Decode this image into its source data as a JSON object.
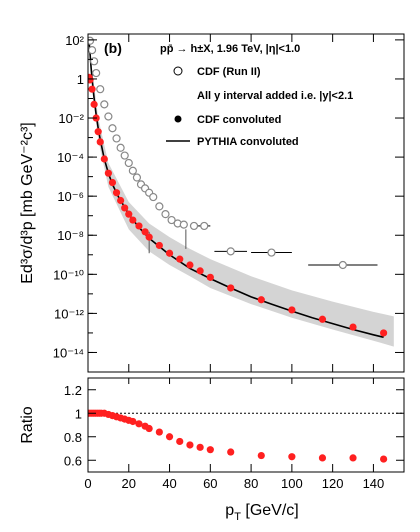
{
  "figure": {
    "panel_label": "(b)",
    "header": "pp̄ → h±X, 1.96 TeV, |η|<1.0",
    "legend": [
      {
        "marker": "open-circle",
        "label": "CDF (Run II)"
      },
      {
        "marker": "none",
        "label": "All y interval added i.e. |y|<2.1"
      },
      {
        "marker": "filled-circle",
        "label": "CDF convoluted"
      },
      {
        "marker": "line",
        "label": "PYTHIA convoluted"
      }
    ],
    "y_title_top": "Ed³σ/d³p [mb GeV⁻²c³]",
    "y_title_bottom": "Ratio",
    "x_title": "p_T [GeV/c]"
  },
  "chart_data": [
    {
      "type": "scatter",
      "scale": "log",
      "xlim": [
        0,
        155
      ],
      "ylim": [
        1e-15,
        200
      ],
      "x_ticks": [
        0,
        20,
        40,
        60,
        80,
        100,
        120,
        140
      ],
      "y_ticks": [
        {
          "value": 100,
          "label": "10²"
        },
        {
          "value": 1,
          "label": "1"
        },
        {
          "value": 0.01,
          "label": "10⁻²"
        },
        {
          "value": 0.0001,
          "label": "10⁻⁴"
        },
        {
          "value": 1e-06,
          "label": "10⁻⁶"
        },
        {
          "value": 1e-08,
          "label": "10⁻⁸"
        },
        {
          "value": 1e-10,
          "label": "10⁻¹⁰"
        },
        {
          "value": 1e-12,
          "label": "10⁻¹²"
        },
        {
          "value": 1e-14,
          "label": "10⁻¹⁴"
        }
      ],
      "colors": {
        "cdf_convoluted": "#ff2020",
        "band": "#d4d4d4",
        "cdf_run2": "#888888"
      },
      "series": [
        {
          "name": "CDF (Run II)",
          "marker": "open-circle",
          "x": [
            1,
            2,
            3,
            4,
            6,
            8,
            10,
            12,
            14,
            16,
            18,
            20,
            22,
            24,
            26,
            28,
            30,
            32,
            35,
            38,
            41,
            44,
            47,
            52,
            57,
            70,
            90,
            125
          ],
          "y": [
            90,
            30,
            8,
            2,
            0.3,
            0.05,
            0.012,
            0.003,
            0.0009,
            0.0003,
            0.00012,
            5e-05,
            2e-05,
            9e-06,
            4e-06,
            2.5e-06,
            1.5e-06,
            9e-07,
            3e-07,
            1.2e-07,
            6e-08,
            4e-08,
            3.5e-08,
            3e-08,
            3e-08,
            1.5e-09,
            1.3e-09,
            3e-10
          ],
          "xerr": [
            0,
            0,
            0,
            0,
            0,
            0,
            0,
            0,
            0,
            0,
            0,
            0,
            0,
            0,
            0,
            0,
            0,
            0,
            0,
            0,
            0,
            0,
            0,
            2,
            3,
            8,
            10,
            17
          ]
        },
        {
          "name": "CDF convoluted",
          "marker": "filled-circle",
          "x": [
            0.5,
            1,
            2,
            3,
            4,
            5,
            6,
            8,
            10,
            12,
            14,
            16,
            18,
            20,
            22,
            25,
            28,
            30,
            35,
            40,
            45,
            50,
            55,
            60,
            70,
            85,
            100,
            115,
            130,
            145
          ],
          "y": [
            1.2,
            0.9,
            0.3,
            0.05,
            0.01,
            0.002,
            0.0006,
            8e-05,
            1.5e-05,
            5e-06,
            1.5e-06,
            6e-07,
            2.5e-07,
            1.2e-07,
            6e-08,
            3e-08,
            1.5e-08,
            8e-09,
            3e-09,
            1.2e-09,
            6e-10,
            3e-10,
            1.5e-10,
            7e-11,
            2e-11,
            5e-12,
            1.5e-12,
            5e-13,
            2e-13,
            1e-13
          ]
        },
        {
          "name": "PYTHIA convoluted",
          "marker": "line",
          "x": [
            0.5,
            1,
            1.5,
            2,
            3,
            4,
            5,
            6,
            8,
            10,
            12,
            15,
            20,
            25,
            30,
            40,
            50,
            60,
            70,
            80,
            90,
            100,
            110,
            120,
            130,
            140,
            145
          ],
          "y": [
            100,
            20,
            4,
            1,
            0.1,
            0.015,
            0.003,
            0.0008,
            8e-05,
            1.5e-05,
            4e-06,
            9e-07,
            1.2e-07,
            2.5e-08,
            7e-09,
            1e-09,
            2e-10,
            6e-11,
            2e-11,
            7e-12,
            3e-12,
            1.3e-12,
            6e-13,
            3e-13,
            1.5e-13,
            8e-14,
            6e-14
          ]
        }
      ],
      "band": {
        "x": [
          0.5,
          2,
          5,
          10,
          20,
          30,
          40,
          50,
          60,
          80,
          100,
          120,
          140,
          150
        ],
        "upper": [
          150,
          3,
          0.01,
          5e-05,
          5e-07,
          4e-08,
          8e-09,
          2e-09,
          6e-10,
          8e-11,
          1.5e-11,
          4e-12,
          1.2e-12,
          7e-13
        ],
        "lower": [
          40,
          0.3,
          0.0008,
          3e-06,
          2e-08,
          1.5e-09,
          3e-10,
          8e-11,
          2e-11,
          3e-12,
          6e-13,
          1.5e-13,
          4e-14,
          2e-14
        ]
      }
    },
    {
      "type": "scatter",
      "xlim": [
        0,
        155
      ],
      "ylim": [
        0.5,
        1.3
      ],
      "x_ticks": [
        0,
        20,
        40,
        60,
        80,
        100,
        120,
        140
      ],
      "y_ticks": [
        0.6,
        0.8,
        1,
        1.2
      ],
      "reference_line": 1.0,
      "series": [
        {
          "name": "Ratio",
          "marker": "filled-circle",
          "x": [
            0.5,
            1.5,
            2.5,
            3.5,
            4.5,
            5.5,
            6.5,
            8,
            10,
            12,
            14,
            16,
            18,
            20,
            22,
            25,
            28,
            30,
            35,
            40,
            45,
            50,
            55,
            60,
            70,
            85,
            100,
            115,
            130,
            145
          ],
          "y": [
            1.0,
            1.0,
            1.0,
            1.0,
            1.0,
            1.0,
            1.0,
            1.0,
            0.99,
            0.98,
            0.97,
            0.96,
            0.95,
            0.94,
            0.93,
            0.91,
            0.89,
            0.87,
            0.84,
            0.8,
            0.76,
            0.73,
            0.71,
            0.69,
            0.67,
            0.64,
            0.63,
            0.62,
            0.62,
            0.61
          ]
        }
      ]
    }
  ]
}
